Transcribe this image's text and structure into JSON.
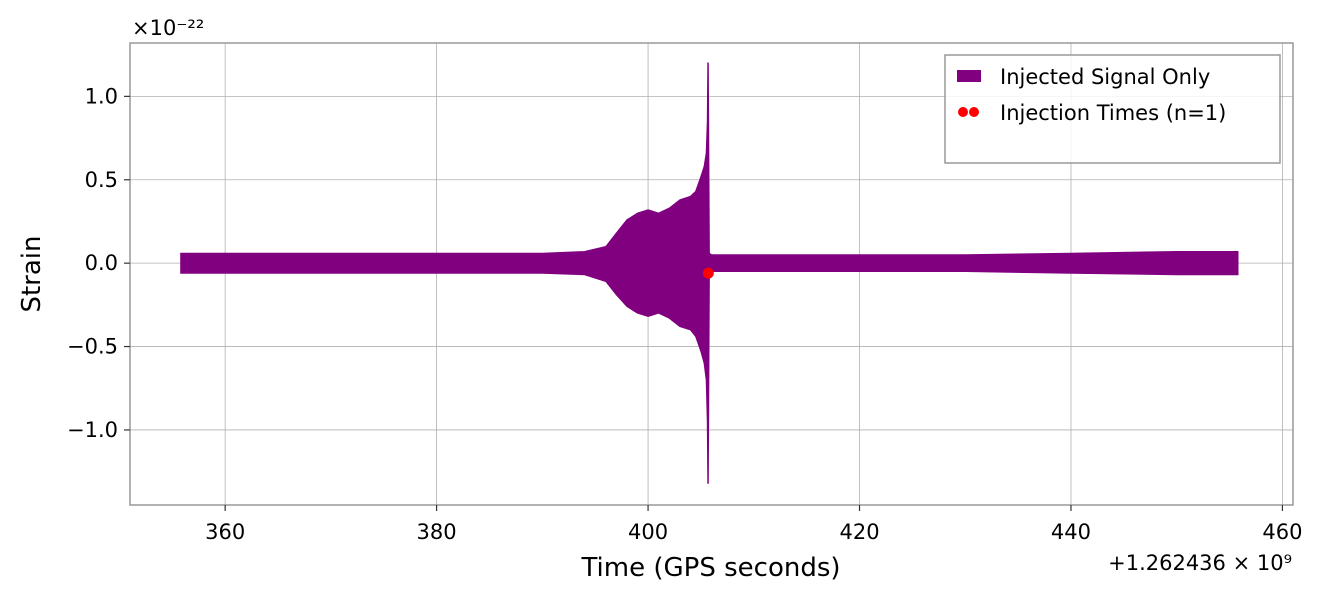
{
  "chart_data": {
    "type": "line",
    "title": "",
    "xlabel": "Time (GPS seconds)",
    "ylabel": "Strain",
    "x_offset_label": "+1.262436 × 10⁹",
    "y_scale_label": "×10⁻²²",
    "x_offset": 1262436000,
    "y_scale": 1e-22,
    "xlim": [
      351,
      461
    ],
    "ylim": [
      -1.45,
      1.32
    ],
    "x_ticks": [
      360,
      380,
      400,
      420,
      440,
      460
    ],
    "x_tick_labels": [
      "360",
      "380",
      "400",
      "420",
      "440",
      "460"
    ],
    "y_ticks": [
      1.0,
      0.5,
      0.0,
      -0.5,
      -1.0
    ],
    "y_tick_labels": [
      "1.0",
      "0.5",
      "0.0",
      "−0.5",
      "−1.0"
    ],
    "grid": true,
    "legend_position": "top-right",
    "series": [
      {
        "name": "Injected Signal Only",
        "kind": "band",
        "color": "#800080",
        "x": [
          355.8,
          360,
          370,
          380,
          390,
          394,
          396,
          397,
          398,
          399,
          400,
          401,
          402,
          403,
          404,
          404.5,
          405,
          405.3,
          405.5,
          405.6,
          405.65,
          405.7,
          405.8,
          406,
          410,
          420,
          430,
          440,
          450,
          455.8
        ],
        "y_upper": [
          0.06,
          0.06,
          0.06,
          0.06,
          0.06,
          0.07,
          0.1,
          0.18,
          0.26,
          0.3,
          0.32,
          0.3,
          0.33,
          0.38,
          0.4,
          0.43,
          0.52,
          0.58,
          0.66,
          0.85,
          1.2,
          1.2,
          0.06,
          0.05,
          0.05,
          0.05,
          0.05,
          0.06,
          0.07,
          0.07
        ],
        "y_lower": [
          -0.06,
          -0.06,
          -0.06,
          -0.06,
          -0.06,
          -0.07,
          -0.11,
          -0.19,
          -0.26,
          -0.3,
          -0.32,
          -0.3,
          -0.33,
          -0.38,
          -0.4,
          -0.44,
          -0.53,
          -0.6,
          -0.7,
          -0.95,
          -1.32,
          -1.32,
          -0.05,
          -0.05,
          -0.05,
          -0.05,
          -0.05,
          -0.06,
          -0.07,
          -0.07
        ]
      },
      {
        "name": "Injection Times (n=1)",
        "kind": "scatter",
        "color": "#ff0000",
        "x": [
          405.7
        ],
        "y": [
          -0.06
        ]
      }
    ]
  }
}
